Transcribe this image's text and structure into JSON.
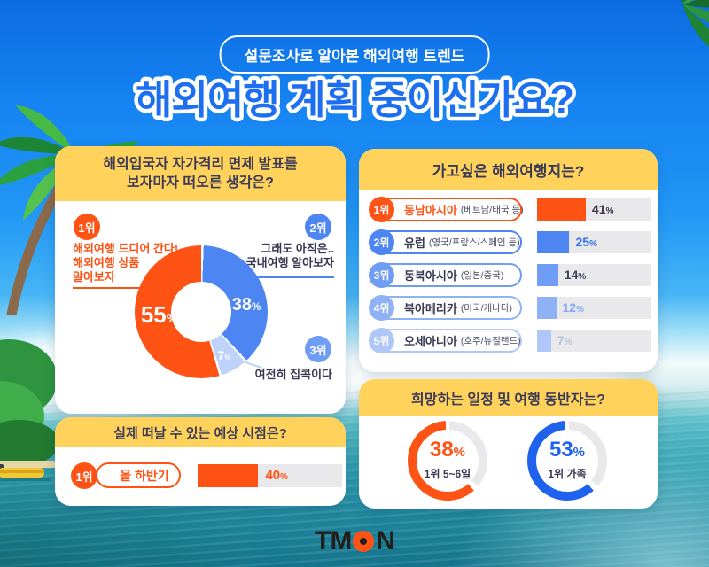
{
  "signs": {
    "percent": "%"
  },
  "colors": {
    "brand_orange": "#ff5315",
    "blue": "#4d85f2",
    "light_blue_slice": "#bfd2fa",
    "royal_blue": "#1f62ee",
    "header_yellow": "#ffd25c",
    "navy_text": "#383853",
    "track_gray": "#e9e9ec"
  },
  "badge": {
    "label": "설문조사로 알아본 해외여행 트렌드"
  },
  "title": "해외여행 계획 중이신가요?",
  "panels": {
    "thoughts": {
      "title": "해외입국자 자가격리 면제 발표를\n보자마자 떠오른 생각은?",
      "donut": [
        {
          "pct": 38,
          "color": "#4d85f2"
        },
        {
          "pct": 7,
          "color": "#bfd2fa"
        },
        {
          "pct": 55,
          "color": "#ff5315"
        }
      ],
      "labels": {
        "first": 55,
        "second": 38,
        "third": 7
      },
      "annotations": {
        "first": {
          "rank": "1위",
          "text": "해외여행 드디어 간다!\n해외여행 상품\n알아보자"
        },
        "second": {
          "rank": "2위",
          "text": "그래도 아직은..\n국내여행 알아보자"
        },
        "third": {
          "rank": "3위",
          "text": "여전히 집콕이다"
        }
      }
    },
    "destinations": {
      "title": "가고싶은 해외여행지는?",
      "rows": [
        {
          "rank": "1위",
          "name": "동남아시아",
          "detail": "(베트남/태국 등)",
          "value": 41,
          "color": "#ff5315",
          "name_color": "#ff5315",
          "value_color": "#40354a"
        },
        {
          "rank": "2위",
          "name": "유럽",
          "detail": "(영국/프랑스/스페인 등)",
          "value": 25,
          "color": "#4d85f2",
          "name_color": "#383853",
          "value_color": "#2e6ff0"
        },
        {
          "rank": "3위",
          "name": "동북아시아",
          "detail": "(일본/중국)",
          "value": 14,
          "color": "#6f9cf4",
          "name_color": "#383853",
          "value_color": "#3c4260"
        },
        {
          "rank": "4위",
          "name": "북아메리카",
          "detail": "(미국/캐나다)",
          "value": 12,
          "color": "#8fb2f7",
          "name_color": "#383853",
          "value_color": "#84a7f6"
        },
        {
          "rank": "5위",
          "name": "오세아니아",
          "detail": "(호주/뉴질랜드)",
          "value": 7,
          "color": "#b0c7fa",
          "name_color": "#383853",
          "value_color": "#b6c3da"
        }
      ]
    },
    "timing": {
      "title": "실제 떠날 수 있는 예상 시점은?",
      "row": {
        "rank": "1위",
        "name": "올 하반기",
        "value": 40
      }
    },
    "schedule": {
      "title": "희망하는 일정 및 여행 동반자는?",
      "rings": [
        {
          "value": 38,
          "caption": "1위 5~6일",
          "color": "#ff5315"
        },
        {
          "value": 53,
          "caption": "1위 가족",
          "color": "#1f62ee"
        }
      ]
    }
  },
  "logo": {
    "text": "TMON",
    "t": "T",
    "m": "M",
    "n": "N"
  },
  "chart_data": [
    {
      "type": "pie",
      "title": "해외입국자 자가격리 면제 발표를 보자마자 떠오른 생각은?",
      "labels": [
        "해외여행 드디어 간다! 해외여행 상품 알아보자",
        "그래도 아직은.. 국내여행 알아보자",
        "여전히 집콕이다"
      ],
      "ranks": [
        "1위",
        "2위",
        "3위"
      ],
      "values": [
        55,
        38,
        7
      ],
      "colors": [
        "#ff5315",
        "#4d85f2",
        "#bfd2fa"
      ],
      "unit": "%",
      "style": "donut"
    },
    {
      "type": "bar",
      "title": "가고싶은 해외여행지는?",
      "categories": [
        "동남아시아 (베트남/태국 등)",
        "유럽 (영국/프랑스/스페인 등)",
        "동북아시아 (일본/중국)",
        "북아메리카 (미국/캐나다)",
        "오세아니아 (호주/뉴질랜드)"
      ],
      "ranks": [
        "1위",
        "2위",
        "3위",
        "4위",
        "5위"
      ],
      "values": [
        41,
        25,
        14,
        12,
        7
      ],
      "unit": "%",
      "orientation": "horizontal",
      "xlim": [
        0,
        100
      ]
    },
    {
      "type": "bar",
      "title": "실제 떠날 수 있는 예상 시점은?",
      "categories": [
        "올 하반기"
      ],
      "ranks": [
        "1위"
      ],
      "values": [
        40
      ],
      "unit": "%",
      "orientation": "horizontal",
      "xlim": [
        0,
        100
      ]
    },
    {
      "type": "pie",
      "title": "희망하는 일정 및 여행 동반자는?",
      "style": "double-donut",
      "series": [
        {
          "name": "희망 일정",
          "label": "1위 5~6일",
          "value": 38,
          "color": "#ff5315"
        },
        {
          "name": "여행 동반자",
          "label": "1위 가족",
          "value": 53,
          "color": "#1f62ee"
        }
      ],
      "unit": "%"
    }
  ]
}
